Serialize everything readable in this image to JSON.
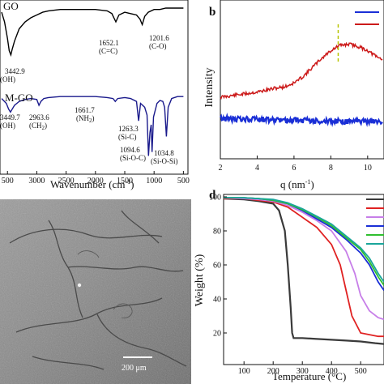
{
  "colors": {
    "go": "#000000",
    "mgo": "#1a1a8c",
    "xrd_red": "#cc1a1a",
    "xrd_blue": "#1a2fd6",
    "marker": "#b8c400"
  },
  "panels": {
    "a": {
      "xlabel": "Wavenumber (cm",
      "xlabel_sup": "-1",
      "xlabel_close": ")",
      "series_go": "GO",
      "series_mgo": "M-GO",
      "xticks": [
        "500",
        "3000",
        "2500",
        "2000",
        "1500",
        "1000",
        "500"
      ],
      "annotations": {
        "go_oh_val": "3442.9",
        "go_oh_grp": "(OH)",
        "go_cc_val": "1652.1",
        "go_cc_grp": "(C=C)",
        "go_co_val": "1201.6",
        "go_co_grp": "(C-O)",
        "mgo_oh_val": "3449.7",
        "mgo_oh_grp": "(OH)",
        "mgo_ch2_val": "2963.6",
        "mgo_ch2_grp": "(CH",
        "mgo_ch2_sub": "2",
        "mgo_ch2_close": ")",
        "mgo_nh2_val": "1661.7",
        "mgo_nh2_grp": "(NH",
        "mgo_nh2_sub": "2",
        "mgo_nh2_close": ")",
        "mgo_sic_val": "1263.3",
        "mgo_sic_grp": "(Si-C)",
        "mgo_sioc_val": "1094.6",
        "mgo_sioc_grp": "(Si-O-C)",
        "mgo_siosi_val": "1034.8",
        "mgo_siosi_grp": "(Si-O-Si)"
      }
    },
    "b": {
      "label": "b",
      "xlabel": "q (nm",
      "xlabel_sup": "-1",
      "xlabel_close": ")",
      "ylabel": "Intensity",
      "xticks": [
        "2",
        "4",
        "6",
        "8",
        "10"
      ]
    },
    "c": {
      "scale_bar": "200 μm"
    },
    "d": {
      "label": "d",
      "xlabel": "Temperature (°C)",
      "ylabel": "Weight (%)",
      "xticks": [
        "100",
        "200",
        "300",
        "400",
        "500"
      ],
      "yticks": [
        "100",
        "80",
        "60",
        "40",
        "20"
      ]
    }
  },
  "chart_data": [
    {
      "type": "line",
      "panel": "a",
      "xlabel": "Wavenumber (cm-1)",
      "x_reversed": true,
      "xlim": [
        3600,
        450
      ],
      "series": [
        {
          "name": "GO",
          "x": [
            3600,
            3550,
            3500,
            3470,
            3442.9,
            3420,
            3380,
            3300,
            3200,
            3100,
            3000,
            2900,
            2800,
            2600,
            2400,
            2200,
            2000,
            1800,
            1720,
            1652.1,
            1600,
            1500,
            1400,
            1300,
            1240,
            1201.6,
            1160,
            1100,
            1000,
            900,
            800,
            700,
            600,
            500
          ],
          "y": [
            3,
            10,
            22,
            31,
            34,
            30,
            24,
            15,
            10,
            7,
            5,
            3,
            2,
            1,
            1,
            1,
            1,
            2,
            4,
            10,
            5,
            3,
            4,
            5,
            8,
            12,
            6,
            3,
            1,
            1,
            0,
            0,
            0,
            0
          ]
        },
        {
          "name": "M-GO",
          "x": [
            3600,
            3520,
            3480,
            3449.7,
            3420,
            3380,
            3300,
            3200,
            3100,
            3000,
            2963.6,
            2930,
            2880,
            2800,
            2600,
            2400,
            2200,
            2000,
            1800,
            1700,
            1661.7,
            1620,
            1500,
            1400,
            1300,
            1263.3,
            1230,
            1160,
            1120,
            1094.6,
            1070,
            1050,
            1034.8,
            1010,
            950,
            900,
            850,
            820,
            790,
            760,
            700,
            600,
            500
          ],
          "y": [
            3,
            8,
            14,
            17,
            14,
            10,
            6,
            4,
            3,
            4,
            10,
            6,
            3,
            2,
            1,
            1,
            1,
            1,
            2,
            3,
            6,
            3,
            2,
            3,
            6,
            26,
            8,
            12,
            20,
            62,
            38,
            30,
            58,
            22,
            8,
            5,
            6,
            12,
            42,
            12,
            3,
            1,
            1
          ]
        }
      ]
    },
    {
      "type": "line",
      "panel": "b",
      "xlabel": "q (nm-1)",
      "ylabel": "Intensity",
      "xlim": [
        2,
        11
      ],
      "series": [
        {
          "x": [
            2,
            3,
            4,
            5,
            5.5,
            6,
            6.5,
            7,
            7.5,
            8,
            8.5,
            9,
            9.5,
            10,
            10.5,
            11
          ],
          "y": [
            3.2,
            3.4,
            3.6,
            3.9,
            4.0,
            4.3,
            4.8,
            5.5,
            6.2,
            6.8,
            7.2,
            7.3,
            7.1,
            6.8,
            6.3,
            6.0
          ]
        },
        {
          "x": [
            2,
            3,
            4,
            5,
            6,
            7,
            8,
            9,
            10,
            11
          ],
          "y": [
            1.1,
            1.0,
            0.95,
            0.9,
            0.85,
            0.8,
            0.75,
            0.7,
            0.7,
            0.7
          ]
        }
      ],
      "marker_q": 8.4
    },
    {
      "type": "line",
      "panel": "d",
      "xlabel": "Temperature (°C)",
      "ylabel": "Weight (%)",
      "xlim": [
        30,
        580
      ],
      "ylim": [
        10,
        100
      ],
      "series": [
        {
          "x": [
            30,
            100,
            150,
            200,
            220,
            240,
            250,
            260,
            265,
            270,
            300,
            350,
            400,
            450,
            500,
            550,
            580
          ],
          "y": [
            99,
            98.5,
            97.5,
            96,
            92,
            80,
            60,
            35,
            20,
            17,
            17,
            16.5,
            16,
            15.5,
            15,
            14,
            13.5
          ]
        },
        {
          "x": [
            30,
            100,
            150,
            200,
            250,
            300,
            350,
            400,
            430,
            450,
            470,
            500,
            530,
            560,
            580
          ],
          "y": [
            99,
            99,
            98,
            97,
            94,
            88,
            82,
            72,
            60,
            45,
            30,
            20,
            19,
            18,
            18
          ]
        },
        {
          "x": [
            30,
            100,
            150,
            200,
            250,
            300,
            350,
            400,
            450,
            480,
            500,
            530,
            560,
            580
          ],
          "y": [
            99.5,
            99,
            98.5,
            97.5,
            95,
            91,
            86,
            80,
            68,
            55,
            42,
            33,
            29,
            28
          ]
        },
        {
          "x": [
            30,
            100,
            150,
            200,
            250,
            300,
            350,
            400,
            450,
            500,
            530,
            560,
            580
          ],
          "y": [
            99.5,
            99.5,
            99,
            98,
            96,
            92,
            87,
            82,
            75,
            67,
            60,
            50,
            45
          ]
        },
        {
          "x": [
            30,
            100,
            150,
            200,
            250,
            300,
            350,
            400,
            450,
            500,
            530,
            560,
            580
          ],
          "y": [
            99.5,
            99.5,
            99,
            98,
            96,
            92.5,
            88,
            83,
            76,
            69,
            62,
            53,
            48
          ]
        },
        {
          "x": [
            30,
            100,
            150,
            200,
            250,
            300,
            350,
            400,
            450,
            500,
            530,
            560,
            580
          ],
          "y": [
            99.5,
            99.5,
            99,
            98.5,
            96.5,
            93,
            88.5,
            84,
            77,
            70,
            64,
            55,
            50
          ]
        }
      ],
      "series_colors": [
        "#3a3a3a",
        "#e02222",
        "#c77ee8",
        "#1a2fd6",
        "#2fbf2f",
        "#1aa69a"
      ]
    }
  ]
}
